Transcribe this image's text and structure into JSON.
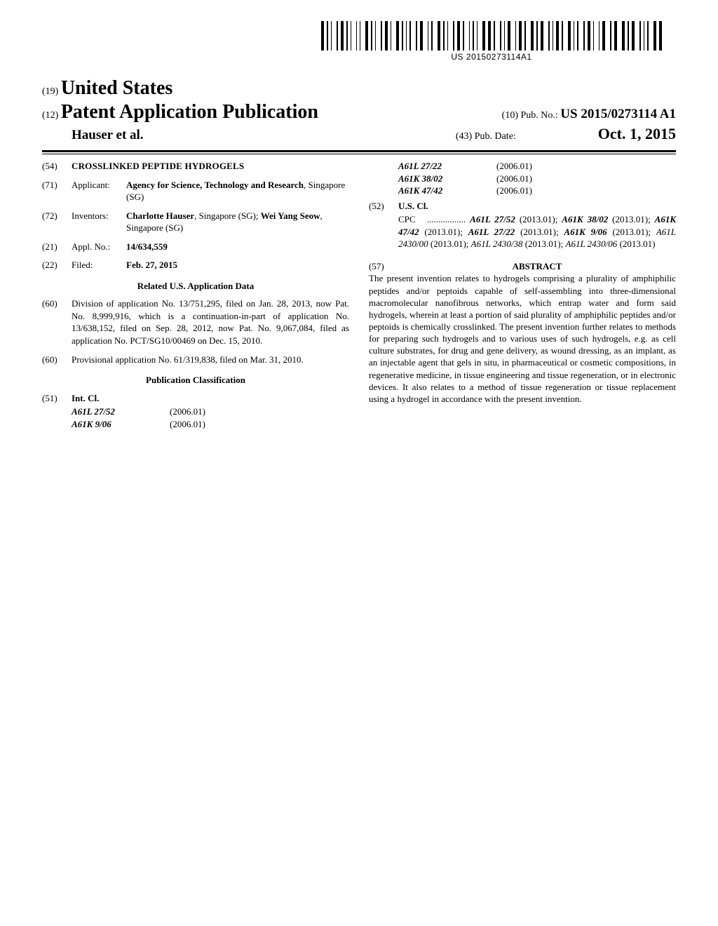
{
  "barcode_text": "US 20150273114A1",
  "header": {
    "inid_country": "(19)",
    "country": "United States",
    "inid_pubtype": "(12)",
    "pubtype": "Patent Application Publication",
    "authors": "Hauser et al.",
    "inid_pubno": "(10)",
    "pubno_label": "Pub. No.:",
    "pubno": "US 2015/0273114 A1",
    "inid_pubdate": "(43)",
    "pubdate_label": "Pub. Date:",
    "pubdate": "Oct. 1, 2015"
  },
  "left": {
    "title": {
      "inid": "(54)",
      "text": "CROSSLINKED PEPTIDE HYDROGELS"
    },
    "applicant": {
      "inid": "(71)",
      "label": "Applicant:",
      "text": "Agency for Science, Technology and Research",
      "loc": ", Singapore (SG)"
    },
    "inventors": {
      "inid": "(72)",
      "label": "Inventors:",
      "names": [
        {
          "name": "Charlotte Hauser",
          "loc": ", Singapore (SG); "
        },
        {
          "name": "Wei Yang Seow",
          "loc": ", Singapore (SG)"
        }
      ]
    },
    "applno": {
      "inid": "(21)",
      "label": "Appl. No.:",
      "value": "14/634,559"
    },
    "filed": {
      "inid": "(22)",
      "label": "Filed:",
      "value": "Feb. 27, 2015"
    },
    "related_hdr": "Related U.S. Application Data",
    "related": [
      {
        "inid": "(60)",
        "text": "Division of application No. 13/751,295, filed on Jan. 28, 2013, now Pat. No. 8,999,916, which is a continuation-in-part of application No. 13/638,152, filed on Sep. 28, 2012, now Pat. No. 9,067,084, filed as application No. PCT/SG10/00469 on Dec. 15, 2010."
      },
      {
        "inid": "(60)",
        "text": "Provisional application No. 61/319,838, filed on Mar. 31, 2010."
      }
    ],
    "class_hdr": "Publication Classification",
    "intcl": {
      "inid": "(51)",
      "label": "Int. Cl.",
      "rows": [
        {
          "code": "A61L 27/52",
          "year": "(2006.01)"
        },
        {
          "code": "A61K 9/06",
          "year": "(2006.01)"
        }
      ]
    }
  },
  "right": {
    "intcl_cont": [
      {
        "code": "A61L 27/22",
        "year": "(2006.01)"
      },
      {
        "code": "A61K 38/02",
        "year": "(2006.01)"
      },
      {
        "code": "A61K 47/42",
        "year": "(2006.01)"
      }
    ],
    "uscl": {
      "inid": "(52)",
      "label": "U.S. Cl.",
      "cpc_label": "CPC",
      "cpc_dots": " ................. ",
      "items": [
        {
          "code": "A61L 27/52",
          "year": "(2013.01)",
          "bold": true
        },
        {
          "code": "A61K 38/02",
          "year": "(2013.01)",
          "bold": true
        },
        {
          "code": "A61K 47/42",
          "year": "(2013.01)",
          "bold": true
        },
        {
          "code": "A61L 27/22",
          "year": "(2013.01)",
          "bold": true
        },
        {
          "code": "A61K 9/06",
          "year": "(2013.01)",
          "bold": true
        },
        {
          "code": "A61L 2430/00",
          "year": "(2013.01)",
          "bold": false
        },
        {
          "code": "A61L 2430/38",
          "year": "(2013.01)",
          "bold": false
        },
        {
          "code": "A61L 2430/06",
          "year": "(2013.01)",
          "bold": false
        }
      ]
    },
    "abstract": {
      "inid": "(57)",
      "label": "ABSTRACT",
      "text": "The present invention relates to hydrogels comprising a plurality of amphiphilic peptides and/or peptoids capable of self-assembling into three-dimensional macromolecular nanofibrous networks, which entrap water and form said hydrogels, wherein at least a portion of said plurality of amphiphilic peptides and/or peptoids is chemically crosslinked. The present invention further relates to methods for preparing such hydrogels and to various uses of such hydrogels, e.g. as cell culture substrates, for drug and gene delivery, as wound dressing, as an implant, as an injectable agent that gels in situ, in pharmaceutical or cosmetic compositions, in regenerative medicine, in tissue engineering and tissue regeneration, or in electronic devices. It also relates to a method of tissue regeneration or tissue replacement using a hydrogel in accordance with the present invention."
    }
  }
}
